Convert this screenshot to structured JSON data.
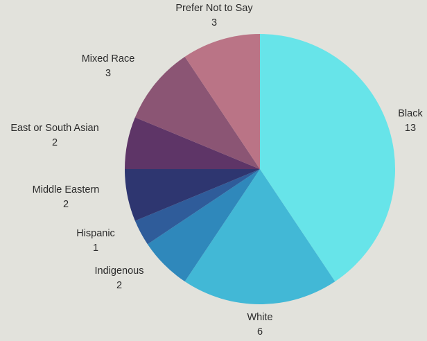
{
  "chart_data": {
    "type": "pie",
    "start_angle_deg": 0,
    "direction": "clockwise",
    "slices": [
      {
        "label": "Black",
        "value": 13,
        "color": "#67e4e9"
      },
      {
        "label": "White",
        "value": 6,
        "color": "#42b8d6"
      },
      {
        "label": "Indigenous",
        "value": 2,
        "color": "#2f88bb"
      },
      {
        "label": "Hispanic",
        "value": 1,
        "color": "#2f5c9a"
      },
      {
        "label": "Middle Eastern",
        "value": 2,
        "color": "#2e3670"
      },
      {
        "label": "East or South Asian",
        "value": 2,
        "color": "#5e3567"
      },
      {
        "label": "Mixed Race",
        "value": 3,
        "color": "#8b5574"
      },
      {
        "label": "Prefer Not to Say",
        "value": 3,
        "color": "#ba7486"
      }
    ]
  }
}
